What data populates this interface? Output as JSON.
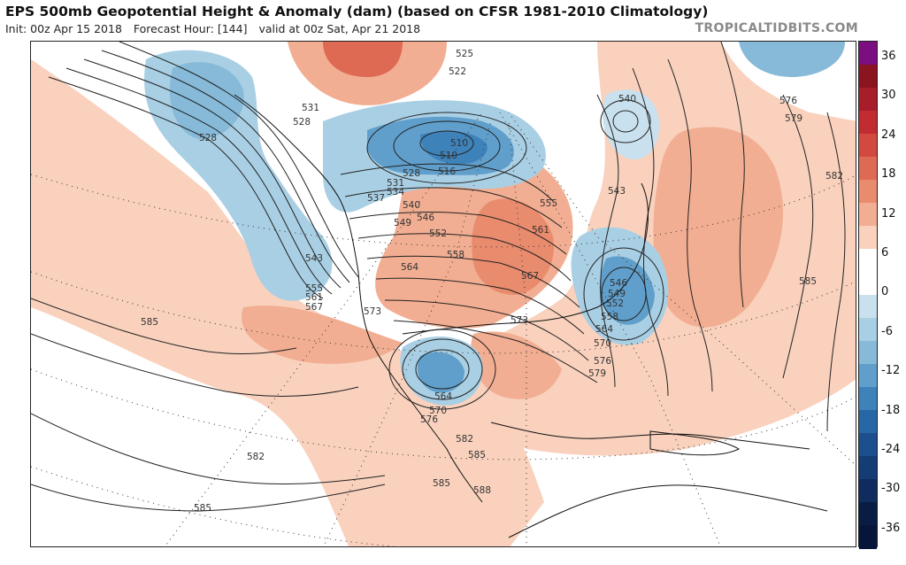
{
  "header": {
    "title": "EPS 500mb Geopotential Height & Anomaly (dam) (based on CFSR 1981-2010 Climatology)",
    "init": "Init: 00z Apr 15 2018",
    "forecast_hour": "Forecast Hour: [144]",
    "valid": "valid at 00z Sat, Apr 21 2018",
    "credit": "TROPICALTIDBITS.COM"
  },
  "colorbar": {
    "ticks": [
      "36",
      "30",
      "24",
      "18",
      "12",
      "6",
      "0",
      "-6",
      "-12",
      "-18",
      "-24",
      "-30",
      "-36"
    ],
    "colors": [
      "#7b0f7f",
      "#8a1420",
      "#a71d2a",
      "#c12c33",
      "#d2493f",
      "#de6a53",
      "#e98b6d",
      "#f2ae92",
      "#f9d1bd",
      "#ffffff",
      "#ffffff",
      "#c9e1ee",
      "#a9cfe4",
      "#86bad8",
      "#609fcb",
      "#3e82ba",
      "#2867a6",
      "#1d4f8e",
      "#143d76",
      "#0e2c5d",
      "#091d44",
      "#06153a"
    ]
  },
  "map": {
    "contour_labels": [
      "525",
      "522",
      "531",
      "528",
      "528",
      "510",
      "510",
      "516",
      "528",
      "531",
      "534",
      "537",
      "540",
      "546",
      "549",
      "552",
      "555",
      "561",
      "543",
      "558",
      "564",
      "567",
      "573",
      "573",
      "555",
      "561",
      "567",
      "543",
      "546",
      "549",
      "552",
      "558",
      "564",
      "570",
      "576",
      "579",
      "540",
      "576",
      "579",
      "582",
      "585",
      "585",
      "585",
      "582",
      "585",
      "564",
      "570",
      "576",
      "582",
      "585",
      "588"
    ]
  }
}
